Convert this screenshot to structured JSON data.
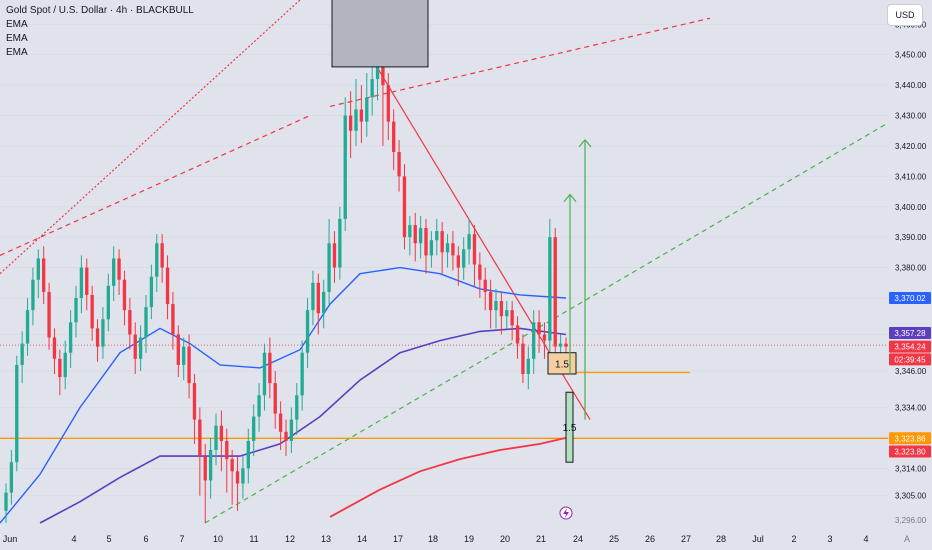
{
  "legend": {
    "title": "Gold Spot / U.S. Dollar · 4h · BLACKBULL",
    "indicators": [
      "EMA",
      "EMA",
      "EMA"
    ]
  },
  "currency_button": "USD",
  "scale_button": "A",
  "colors": {
    "bg": "#e0e3eb",
    "up": "#22ab94",
    "down": "#f23645",
    "ema_fast": "#2962ff",
    "ema_mid": "#5b3fbf",
    "ema_slow": "#f23645",
    "orange": "#ff9800",
    "green_dash": "#4caf50",
    "red_dash": "#f23645"
  },
  "chart_data": {
    "type": "candlestick",
    "ylim": [
      3296,
      3468
    ],
    "yticks": [
      3305,
      3314,
      3323.8,
      3334,
      3346,
      3358,
      3370,
      3380,
      3390,
      3400,
      3410,
      3420,
      3430,
      3440,
      3450,
      3460
    ],
    "ytick_labels": [
      "3,305.00",
      "3,314.00",
      "3,323.80",
      "3,334.00",
      "3,346.00",
      "3,358.00",
      "3,370.00",
      "3,380.00",
      "3,390.00",
      "3,400.00",
      "3,410.00",
      "3,420.00",
      "3,430.00",
      "3,440.00",
      "3,450.00",
      "3,460.00"
    ],
    "ytick_bottom_label": "3,296.00",
    "xlabels": [
      {
        "label": "Jun",
        "x": 10
      },
      {
        "label": "4",
        "x": 74
      },
      {
        "label": "5",
        "x": 109
      },
      {
        "label": "6",
        "x": 146
      },
      {
        "label": "7",
        "x": 182
      },
      {
        "label": "10",
        "x": 218
      },
      {
        "label": "11",
        "x": 254
      },
      {
        "label": "12",
        "x": 290
      },
      {
        "label": "13",
        "x": 326
      },
      {
        "label": "14",
        "x": 362
      },
      {
        "label": "17",
        "x": 398
      },
      {
        "label": "18",
        "x": 433
      },
      {
        "label": "19",
        "x": 469
      },
      {
        "label": "20",
        "x": 505
      },
      {
        "label": "21",
        "x": 541
      },
      {
        "label": "24",
        "x": 578
      },
      {
        "label": "25",
        "x": 614
      },
      {
        "label": "26",
        "x": 650
      },
      {
        "label": "27",
        "x": 686
      },
      {
        "label": "28",
        "x": 721
      },
      {
        "label": "Jul",
        "x": 758
      },
      {
        "label": "2",
        "x": 794
      },
      {
        "label": "3",
        "x": 830
      },
      {
        "label": "4",
        "x": 866
      }
    ],
    "candles": [
      [
        3300,
        3306,
        3296,
        3309
      ],
      [
        3306,
        3316,
        3302,
        3320
      ],
      [
        3316,
        3348,
        3313,
        3351
      ],
      [
        3348,
        3355,
        3342,
        3359
      ],
      [
        3355,
        3366,
        3351,
        3370
      ],
      [
        3366,
        3376,
        3361,
        3380
      ],
      [
        3376,
        3383,
        3370,
        3386
      ],
      [
        3383,
        3372,
        3368,
        3387
      ],
      [
        3372,
        3357,
        3353,
        3375
      ],
      [
        3357,
        3350,
        3345,
        3360
      ],
      [
        3350,
        3344,
        3338,
        3353
      ],
      [
        3344,
        3352,
        3340,
        3356
      ],
      [
        3352,
        3362,
        3347,
        3366
      ],
      [
        3362,
        3370,
        3357,
        3374
      ],
      [
        3370,
        3380,
        3365,
        3384
      ],
      [
        3380,
        3371,
        3366,
        3383
      ],
      [
        3371,
        3360,
        3356,
        3374
      ],
      [
        3360,
        3354,
        3349,
        3363
      ],
      [
        3354,
        3363,
        3350,
        3367
      ],
      [
        3363,
        3374,
        3359,
        3378
      ],
      [
        3374,
        3383,
        3369,
        3387
      ],
      [
        3383,
        3376,
        3371,
        3386
      ],
      [
        3376,
        3366,
        3361,
        3379
      ],
      [
        3366,
        3358,
        3353,
        3370
      ],
      [
        3358,
        3350,
        3345,
        3362
      ],
      [
        3350,
        3357,
        3346,
        3361
      ],
      [
        3357,
        3367,
        3352,
        3371
      ],
      [
        3367,
        3377,
        3363,
        3381
      ],
      [
        3377,
        3388,
        3372,
        3391
      ],
      [
        3388,
        3380,
        3375,
        3391
      ],
      [
        3380,
        3368,
        3363,
        3384
      ],
      [
        3368,
        3358,
        3353,
        3372
      ],
      [
        3358,
        3348,
        3344,
        3361
      ],
      [
        3348,
        3354,
        3343,
        3357
      ],
      [
        3354,
        3342,
        3337,
        3358
      ],
      [
        3342,
        3330,
        3322,
        3345
      ],
      [
        3330,
        3318,
        3305,
        3334
      ],
      [
        3318,
        3310,
        3296,
        3322
      ],
      [
        3310,
        3320,
        3304,
        3324
      ],
      [
        3320,
        3328,
        3315,
        3332
      ],
      [
        3328,
        3323,
        3313,
        3333
      ],
      [
        3323,
        3317,
        3306,
        3327
      ],
      [
        3317,
        3313,
        3302,
        3320
      ],
      [
        3313,
        3309,
        3300,
        3318
      ],
      [
        3309,
        3314,
        3304,
        3318
      ],
      [
        3314,
        3323,
        3309,
        3327
      ],
      [
        3323,
        3331,
        3318,
        3335
      ],
      [
        3331,
        3338,
        3326,
        3342
      ],
      [
        3338,
        3352,
        3333,
        3355
      ],
      [
        3352,
        3342,
        3337,
        3357
      ],
      [
        3342,
        3332,
        3327,
        3346
      ],
      [
        3332,
        3326,
        3320,
        3336
      ],
      [
        3326,
        3323,
        3318,
        3330
      ],
      [
        3323,
        3330,
        3319,
        3334
      ],
      [
        3330,
        3338,
        3325,
        3342
      ],
      [
        3338,
        3352,
        3333,
        3356
      ],
      [
        3352,
        3366,
        3347,
        3370
      ],
      [
        3366,
        3375,
        3361,
        3379
      ],
      [
        3375,
        3365,
        3358,
        3378
      ],
      [
        3365,
        3372,
        3360,
        3376
      ],
      [
        3372,
        3388,
        3368,
        3396
      ],
      [
        3388,
        3380,
        3375,
        3392
      ],
      [
        3380,
        3396,
        3376,
        3400
      ],
      [
        3396,
        3430,
        3392,
        3436
      ],
      [
        3430,
        3425,
        3416,
        3438
      ],
      [
        3425,
        3432,
        3420,
        3442
      ],
      [
        3432,
        3428,
        3421,
        3440
      ],
      [
        3428,
        3436,
        3423,
        3444
      ],
      [
        3436,
        3442,
        3430,
        3447
      ],
      [
        3442,
        3451,
        3435,
        3452
      ],
      [
        3451,
        3440,
        3420,
        3452
      ],
      [
        3440,
        3428,
        3422,
        3444
      ],
      [
        3428,
        3418,
        3412,
        3432
      ],
      [
        3418,
        3410,
        3405,
        3422
      ],
      [
        3410,
        3390,
        3386,
        3414
      ],
      [
        3390,
        3394,
        3384,
        3397
      ],
      [
        3394,
        3388,
        3382,
        3398
      ],
      [
        3388,
        3393,
        3383,
        3397
      ],
      [
        3393,
        3384,
        3378,
        3396
      ],
      [
        3384,
        3389,
        3380,
        3392
      ],
      [
        3389,
        3392,
        3384,
        3396
      ],
      [
        3392,
        3385,
        3378,
        3395
      ],
      [
        3385,
        3388,
        3380,
        3391
      ],
      [
        3388,
        3384,
        3379,
        3392
      ],
      [
        3384,
        3380,
        3374,
        3387
      ],
      [
        3380,
        3386,
        3376,
        3390
      ],
      [
        3386,
        3391,
        3381,
        3396
      ],
      [
        3391,
        3381,
        3374,
        3394
      ],
      [
        3381,
        3376,
        3370,
        3385
      ],
      [
        3376,
        3372,
        3366,
        3380
      ],
      [
        3372,
        3366,
        3360,
        3376
      ],
      [
        3366,
        3369,
        3360,
        3373
      ],
      [
        3369,
        3364,
        3358,
        3372
      ],
      [
        3364,
        3366,
        3360,
        3369
      ],
      [
        3366,
        3361,
        3356,
        3369
      ],
      [
        3361,
        3355,
        3350,
        3364
      ],
      [
        3355,
        3345,
        3342,
        3358
      ],
      [
        3345,
        3350,
        3340,
        3354
      ],
      [
        3350,
        3362,
        3345,
        3366
      ],
      [
        3362,
        3358,
        3352,
        3366
      ],
      [
        3358,
        3356,
        3350,
        3362
      ],
      [
        3356,
        3390,
        3352,
        3396
      ],
      [
        3390,
        3354,
        3350,
        3393
      ],
      [
        3354,
        3355,
        3349,
        3358
      ],
      [
        3355,
        3354,
        3351,
        3357
      ]
    ],
    "ema_fast": [
      [
        0,
        3296
      ],
      [
        40,
        3312
      ],
      [
        80,
        3334
      ],
      [
        120,
        3352
      ],
      [
        160,
        3360
      ],
      [
        190,
        3355
      ],
      [
        220,
        3348
      ],
      [
        260,
        3347
      ],
      [
        300,
        3353
      ],
      [
        330,
        3368
      ],
      [
        360,
        3378
      ],
      [
        400,
        3380
      ],
      [
        440,
        3378
      ],
      [
        480,
        3373
      ],
      [
        520,
        3371
      ],
      [
        566,
        3370
      ]
    ],
    "ema_mid": [
      [
        40,
        3296
      ],
      [
        80,
        3303
      ],
      [
        120,
        3311
      ],
      [
        160,
        3318
      ],
      [
        200,
        3318
      ],
      [
        240,
        3318
      ],
      [
        280,
        3322
      ],
      [
        320,
        3331
      ],
      [
        360,
        3343
      ],
      [
        400,
        3352
      ],
      [
        440,
        3356
      ],
      [
        480,
        3359
      ],
      [
        520,
        3360
      ],
      [
        566,
        3358
      ]
    ],
    "ema_slow": [
      [
        330,
        3298
      ],
      [
        380,
        3307
      ],
      [
        420,
        3313
      ],
      [
        460,
        3317
      ],
      [
        500,
        3320
      ],
      [
        540,
        3322
      ],
      [
        566,
        3324
      ]
    ],
    "horizontal_levels": [
      {
        "y": 3323.86,
        "x_from": 0,
        "x_to": 888,
        "color": "#ff9800"
      },
      {
        "y": 3345.5,
        "x_from": 548,
        "x_to": 690,
        "color": "#ff9800"
      },
      {
        "y": 3354.5,
        "x_from": 0,
        "x_to": 888,
        "color": "#f23645",
        "dotted": true
      }
    ],
    "trendlines": [
      {
        "from": [
          0,
          3378
        ],
        "to": [
          300,
          3468
        ],
        "color": "#f23645",
        "dash": "2,2"
      },
      {
        "from": [
          0,
          3384
        ],
        "to": [
          310,
          3430
        ],
        "color": "#f23645",
        "dash": "5,4"
      },
      {
        "from": [
          330,
          3433
        ],
        "to": [
          710,
          3462
        ],
        "color": "#f23645",
        "dash": "5,4"
      },
      {
        "from": [
          205,
          3296
        ],
        "to": [
          885,
          3427
        ],
        "color": "#4caf50",
        "dash": "5,4"
      },
      {
        "from": [
          375,
          3447
        ],
        "to": [
          590,
          3330
        ],
        "color": "#f23645"
      }
    ],
    "arrows": [
      {
        "x": 570,
        "y_from": 3345,
        "y_to": 3404,
        "color": "#4caf50"
      },
      {
        "x": 585,
        "y_from": 3330,
        "y_to": 3422,
        "color": "#4caf50"
      }
    ],
    "boxes": [
      {
        "label": "",
        "x_from": 332,
        "x_to": 428,
        "y_from": 3446,
        "y_to": 3470,
        "fill": "#b2b5be",
        "stroke": "#131722"
      },
      {
        "label": "1.5",
        "x_from": 548,
        "x_to": 576,
        "y_from": 3345,
        "y_to": 3352,
        "fill": "#f5cfa0",
        "stroke": "#131722"
      },
      {
        "label": "1.5",
        "x_from": 566,
        "x_to": 573,
        "y_from": 3316,
        "y_to": 3339,
        "fill": "#b5dfc0",
        "stroke": "#131722"
      }
    ],
    "price_labels": [
      {
        "text": "3,370.02",
        "y": 3370,
        "color": "#2962ff"
      },
      {
        "text": "3,357.28",
        "y": 3358.5,
        "color": "#5b3fbf"
      },
      {
        "text": "3,354.24",
        "y": 3354,
        "color": "#f23645"
      },
      {
        "text": "02:39:45",
        "y": 3349.8,
        "color": "#f23645"
      },
      {
        "text": "3,323.86",
        "y": 3323.86,
        "color": "#ff9800"
      },
      {
        "text": "3,323.80",
        "y": 3319.5,
        "color": "#f23645"
      }
    ]
  }
}
